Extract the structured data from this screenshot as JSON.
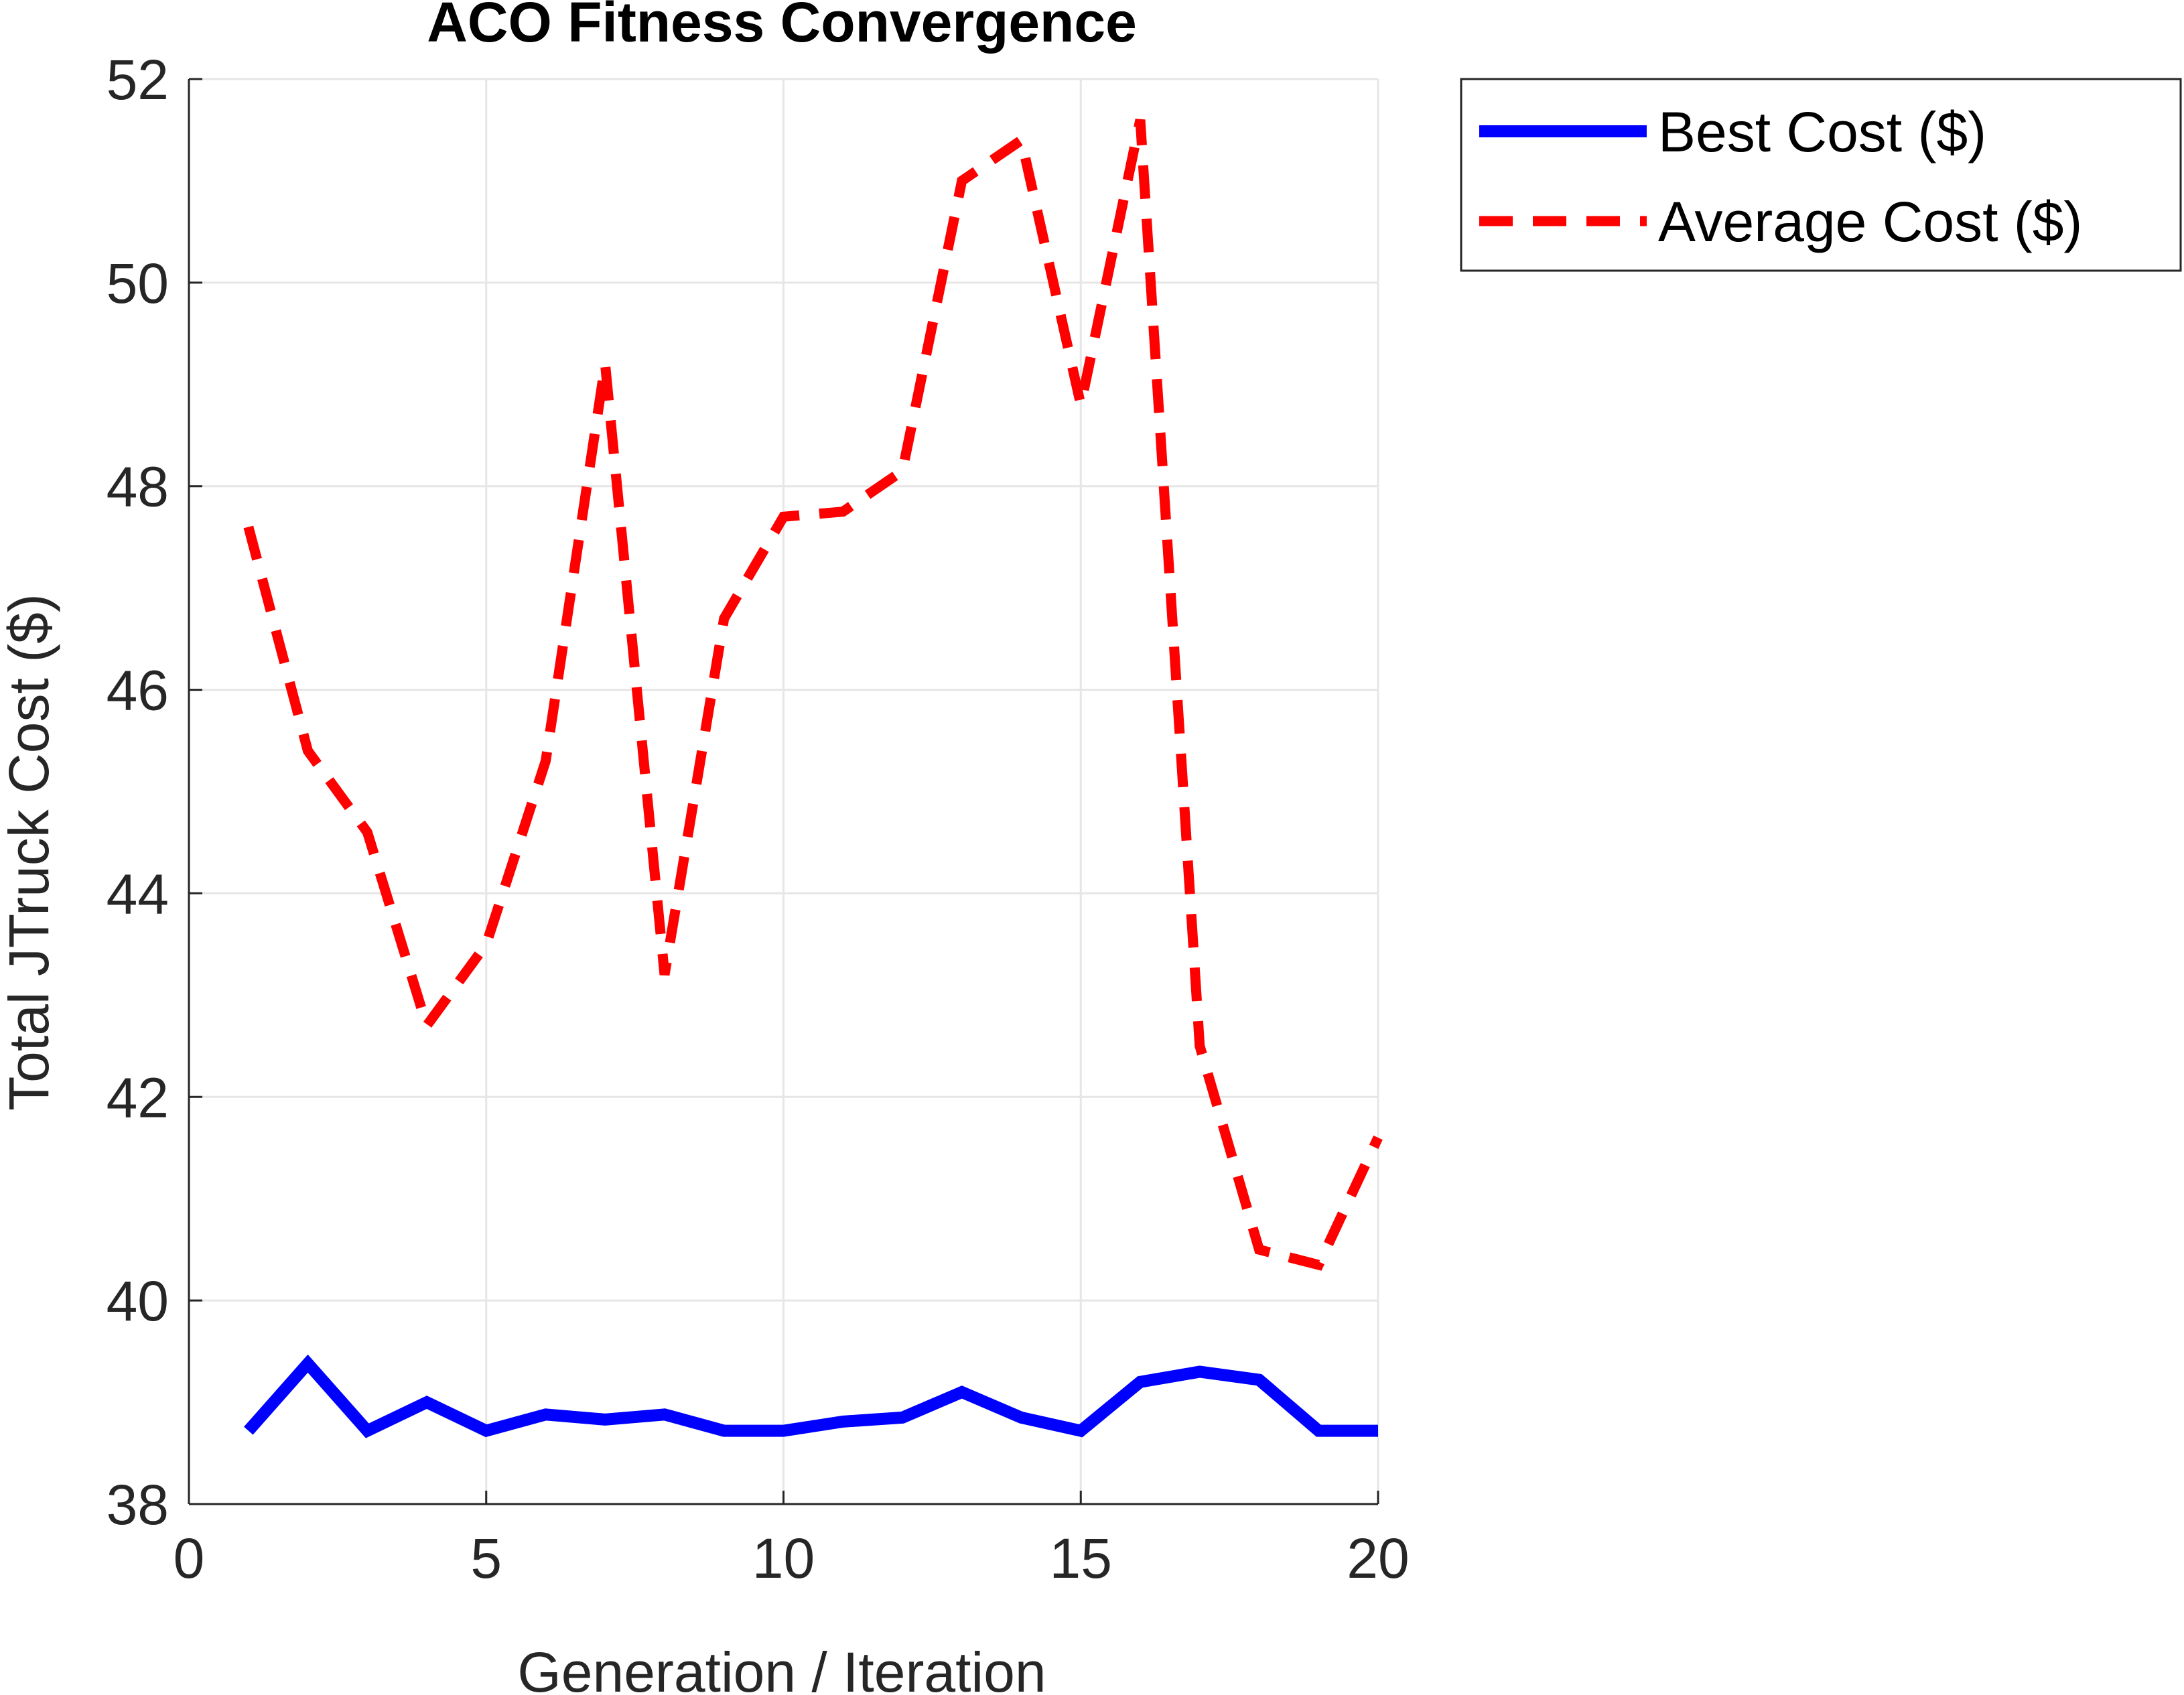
{
  "chart_data": {
    "type": "line",
    "title": "ACO Fitness Convergence",
    "xlabel": "Generation / Iteration",
    "ylabel": "Total JTruck Cost ($)",
    "xlim": [
      0,
      20
    ],
    "ylim": [
      38,
      52
    ],
    "xticks": [
      0,
      5,
      10,
      15,
      20
    ],
    "yticks": [
      38,
      40,
      42,
      44,
      46,
      48,
      50,
      52
    ],
    "grid": true,
    "legend_position": "outside-top-right",
    "x": [
      1,
      2,
      3,
      4,
      5,
      6,
      7,
      8,
      9,
      10,
      11,
      12,
      13,
      14,
      15,
      16,
      17,
      18,
      19,
      20
    ],
    "series": [
      {
        "name": "Best Cost ($)",
        "style": "solid",
        "color": "#0000ff",
        "values": [
          38.72,
          39.38,
          38.72,
          39.0,
          38.72,
          38.88,
          38.83,
          38.88,
          38.72,
          38.72,
          38.81,
          38.85,
          39.1,
          38.85,
          38.72,
          39.2,
          39.3,
          39.22,
          38.72,
          38.72
        ]
      },
      {
        "name": "Average Cost ($)",
        "style": "dashed",
        "color": "#ff0000",
        "values": [
          47.6,
          45.4,
          44.6,
          42.7,
          43.5,
          45.3,
          49.2,
          43.2,
          46.7,
          47.7,
          47.75,
          48.15,
          51.0,
          51.4,
          48.8,
          51.6,
          42.5,
          40.5,
          40.35,
          41.6
        ]
      }
    ]
  }
}
